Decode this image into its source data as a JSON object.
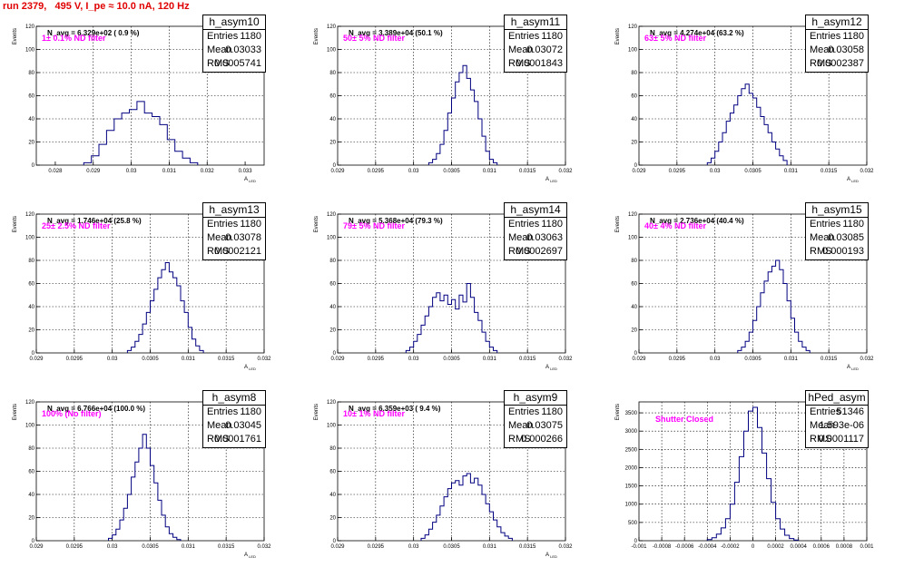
{
  "title": "run 2379,   495 V, I_pe ≈ 10.0 nA, 120 Hz",
  "colors": {
    "title": "#e00000",
    "filter_text": "#ff00ff",
    "hist_line": "#000080",
    "grid": "#000000"
  },
  "chart_data": [
    {
      "type": "histogram",
      "name": "h_asym10",
      "navg": "N_avg = 6.329e+02 ( 0.9 %)",
      "filter": "1± 0.1% ND filter",
      "stats": {
        "entries": "1180",
        "mean": "0.03033",
        "rms": "0.0005741"
      },
      "xlim": [
        0.0275,
        0.0335
      ],
      "ylim": [
        0,
        120
      ],
      "xticks": [
        0.028,
        0.029,
        0.03,
        0.031,
        0.032,
        0.033
      ],
      "xtick_labels": [
        "0.028",
        "0.029",
        "0.03",
        "0.031",
        "0.032",
        "0.033"
      ],
      "yticks": [
        0,
        20,
        40,
        60,
        80,
        100,
        120
      ],
      "ylabel": "Events",
      "xlabel": "A_LED",
      "bin_edges": [
        0.02875,
        0.02895,
        0.02915,
        0.02935,
        0.02955,
        0.02975,
        0.02995,
        0.03015,
        0.03035,
        0.03055,
        0.03075,
        0.03095,
        0.03115,
        0.03135,
        0.03155,
        0.03175
      ],
      "counts": [
        2,
        8,
        18,
        30,
        40,
        45,
        48,
        55,
        45,
        42,
        35,
        22,
        12,
        6,
        2
      ]
    },
    {
      "type": "histogram",
      "name": "h_asym11",
      "navg": "N_avg = 3.389e+04 (50.1 %)",
      "filter": "50± 5% ND filter",
      "stats": {
        "entries": "1180",
        "mean": "0.03072",
        "rms": "0.0001843"
      },
      "xlim": [
        0.029,
        0.032
      ],
      "ylim": [
        0,
        120
      ],
      "xticks": [
        0.029,
        0.0295,
        0.03,
        0.0305,
        0.031,
        0.0315,
        0.032
      ],
      "xtick_labels": [
        "0.029",
        "0.0295",
        "0.03",
        "0.0305",
        "0.031",
        "0.0315",
        "0.032"
      ],
      "yticks": [
        0,
        20,
        40,
        60,
        80,
        100,
        120
      ],
      "ylabel": "Events",
      "xlabel": "A_LED",
      "bin_edges": [
        0.0302,
        0.03025,
        0.0303,
        0.03035,
        0.0304,
        0.03045,
        0.0305,
        0.03055,
        0.0306,
        0.03065,
        0.0307,
        0.03075,
        0.0308,
        0.03085,
        0.0309,
        0.03095,
        0.031,
        0.03105,
        0.0311
      ],
      "counts": [
        2,
        5,
        10,
        18,
        30,
        45,
        58,
        72,
        80,
        86,
        75,
        65,
        55,
        40,
        25,
        12,
        5,
        2
      ]
    },
    {
      "type": "histogram",
      "name": "h_asym12",
      "navg": "N_avg = 4.274e+04 (63.2 %)",
      "filter": "63± 5% ND filter",
      "stats": {
        "entries": "1180",
        "mean": "0.03058",
        "rms": "0.0002387"
      },
      "xlim": [
        0.029,
        0.032
      ],
      "ylim": [
        0,
        120
      ],
      "xticks": [
        0.029,
        0.0295,
        0.03,
        0.0305,
        0.031,
        0.0315,
        0.032
      ],
      "xtick_labels": [
        "0.029",
        "0.0295",
        "0.03",
        "0.0305",
        "0.031",
        "0.0315",
        "0.032"
      ],
      "yticks": [
        0,
        20,
        40,
        60,
        80,
        100,
        120
      ],
      "ylabel": "Events",
      "xlabel": "A_LED",
      "bin_edges": [
        0.0299,
        0.02995,
        0.03,
        0.03005,
        0.0301,
        0.03015,
        0.0302,
        0.03025,
        0.0303,
        0.03035,
        0.0304,
        0.03045,
        0.0305,
        0.03055,
        0.0306,
        0.03065,
        0.0307,
        0.03075,
        0.0308,
        0.03085,
        0.0309,
        0.03095
      ],
      "counts": [
        2,
        6,
        12,
        20,
        28,
        38,
        45,
        52,
        60,
        66,
        70,
        62,
        58,
        50,
        42,
        35,
        28,
        20,
        14,
        8,
        4
      ]
    },
    {
      "type": "histogram",
      "name": "h_asym13",
      "navg": "N_avg = 1.746e+04 (25.8 %)",
      "filter": "25± 2.5% ND filter",
      "stats": {
        "entries": "1180",
        "mean": "0.03078",
        "rms": "0.0002121"
      },
      "xlim": [
        0.029,
        0.032
      ],
      "ylim": [
        0,
        120
      ],
      "xticks": [
        0.029,
        0.0295,
        0.03,
        0.0305,
        0.031,
        0.0315,
        0.032
      ],
      "xtick_labels": [
        "0.029",
        "0.0295",
        "0.03",
        "0.0305",
        "0.031",
        "0.0315",
        "0.032"
      ],
      "yticks": [
        0,
        20,
        40,
        60,
        80,
        100,
        120
      ],
      "ylabel": "Events",
      "xlabel": "A_LED",
      "bin_edges": [
        0.0302,
        0.03025,
        0.0303,
        0.03035,
        0.0304,
        0.03045,
        0.0305,
        0.03055,
        0.0306,
        0.03065,
        0.0307,
        0.03075,
        0.0308,
        0.03085,
        0.0309,
        0.03095,
        0.031,
        0.03105,
        0.0311,
        0.03115,
        0.0312
      ],
      "counts": [
        2,
        5,
        10,
        16,
        25,
        35,
        45,
        55,
        65,
        72,
        78,
        70,
        65,
        58,
        45,
        35,
        22,
        12,
        6,
        2
      ]
    },
    {
      "type": "histogram",
      "name": "h_asym14",
      "navg": "N_avg = 5.368e+04 (79.3 %)",
      "filter": "79± 5% ND filter",
      "stats": {
        "entries": "1180",
        "mean": "0.03063",
        "rms": "0.0002697"
      },
      "xlim": [
        0.029,
        0.032
      ],
      "ylim": [
        0,
        120
      ],
      "xticks": [
        0.029,
        0.0295,
        0.03,
        0.0305,
        0.031,
        0.0315,
        0.032
      ],
      "xtick_labels": [
        "0.029",
        "0.0295",
        "0.03",
        "0.0305",
        "0.031",
        "0.0315",
        "0.032"
      ],
      "yticks": [
        0,
        20,
        40,
        60,
        80,
        100,
        120
      ],
      "ylabel": "Events",
      "xlabel": "A_LED",
      "bin_edges": [
        0.0299,
        0.02995,
        0.03,
        0.03005,
        0.0301,
        0.03015,
        0.0302,
        0.03025,
        0.0303,
        0.03035,
        0.0304,
        0.03045,
        0.0305,
        0.03055,
        0.0306,
        0.03065,
        0.0307,
        0.03075,
        0.0308,
        0.03085,
        0.0309,
        0.03095,
        0.031,
        0.03105,
        0.0311
      ],
      "counts": [
        2,
        5,
        10,
        16,
        24,
        32,
        40,
        48,
        52,
        45,
        50,
        42,
        46,
        38,
        50,
        44,
        60,
        48,
        35,
        28,
        18,
        10,
        5,
        2
      ]
    },
    {
      "type": "histogram",
      "name": "h_asym15",
      "navg": "N_avg = 2.736e+04 (40.4 %)",
      "filter": "40± 4% ND filter",
      "stats": {
        "entries": "1180",
        "mean": "0.03085",
        "rms": "0.000193"
      },
      "xlim": [
        0.029,
        0.032
      ],
      "ylim": [
        0,
        120
      ],
      "xticks": [
        0.029,
        0.0295,
        0.03,
        0.0305,
        0.031,
        0.0315,
        0.032
      ],
      "xtick_labels": [
        "0.029",
        "0.0295",
        "0.03",
        "0.0305",
        "0.031",
        "0.0315",
        "0.032"
      ],
      "yticks": [
        0,
        20,
        40,
        60,
        80,
        100,
        120
      ],
      "ylabel": "Events",
      "xlabel": "A_LED",
      "bin_edges": [
        0.0303,
        0.03035,
        0.0304,
        0.03045,
        0.0305,
        0.03055,
        0.0306,
        0.03065,
        0.0307,
        0.03075,
        0.0308,
        0.03085,
        0.0309,
        0.03095,
        0.031,
        0.03105,
        0.0311,
        0.03115,
        0.0312,
        0.03125
      ],
      "counts": [
        2,
        5,
        10,
        18,
        28,
        40,
        52,
        62,
        70,
        75,
        80,
        72,
        60,
        45,
        30,
        18,
        10,
        5,
        2
      ]
    },
    {
      "type": "histogram",
      "name": "h_asym8",
      "navg": "N_avg = 6.766e+04 (100.0 %)",
      "filter": "100% (No filter)",
      "stats": {
        "entries": "1180",
        "mean": "0.03045",
        "rms": "0.0001761"
      },
      "xlim": [
        0.029,
        0.032
      ],
      "ylim": [
        0,
        120
      ],
      "xticks": [
        0.029,
        0.0295,
        0.03,
        0.0305,
        0.031,
        0.0315,
        0.032
      ],
      "xtick_labels": [
        "0.029",
        "0.0295",
        "0.03",
        "0.0305",
        "0.031",
        "0.0315",
        "0.032"
      ],
      "yticks": [
        0,
        20,
        40,
        60,
        80,
        100,
        120
      ],
      "ylabel": "Events",
      "xlabel": "A_LED",
      "bin_edges": [
        0.02995,
        0.03,
        0.03005,
        0.0301,
        0.03015,
        0.0302,
        0.03025,
        0.0303,
        0.03035,
        0.0304,
        0.03045,
        0.0305,
        0.03055,
        0.0306,
        0.03065,
        0.0307,
        0.03075,
        0.0308,
        0.03085,
        0.0309
      ],
      "counts": [
        2,
        5,
        10,
        18,
        28,
        40,
        55,
        68,
        80,
        92,
        80,
        65,
        50,
        35,
        22,
        12,
        6,
        3,
        1
      ]
    },
    {
      "type": "histogram",
      "name": "h_asym9",
      "navg": "N_avg = 6.359e+03 ( 9.4 %)",
      "filter": "10± 1% ND filter",
      "stats": {
        "entries": "1180",
        "mean": "0.03075",
        "rms": "0.000266"
      },
      "xlim": [
        0.029,
        0.032
      ],
      "ylim": [
        0,
        120
      ],
      "xticks": [
        0.029,
        0.0295,
        0.03,
        0.0305,
        0.031,
        0.0315,
        0.032
      ],
      "xtick_labels": [
        "0.029",
        "0.0295",
        "0.03",
        "0.0305",
        "0.031",
        "0.0315",
        "0.032"
      ],
      "yticks": [
        0,
        20,
        40,
        60,
        80,
        100,
        120
      ],
      "ylabel": "Events",
      "xlabel": "A_LED",
      "bin_edges": [
        0.0301,
        0.03015,
        0.0302,
        0.03025,
        0.0303,
        0.03035,
        0.0304,
        0.03045,
        0.0305,
        0.03055,
        0.0306,
        0.03065,
        0.0307,
        0.03075,
        0.0308,
        0.03085,
        0.0309,
        0.03095,
        0.031,
        0.03105,
        0.0311,
        0.03115,
        0.0312,
        0.03125,
        0.0313
      ],
      "counts": [
        2,
        5,
        10,
        16,
        22,
        30,
        38,
        45,
        50,
        52,
        48,
        56,
        58,
        50,
        54,
        48,
        40,
        32,
        25,
        18,
        12,
        7,
        4,
        2
      ]
    },
    {
      "type": "histogram",
      "name": "hPed_asym",
      "navg": "",
      "filter": "Shutter Closed",
      "stats": {
        "entries": "51346",
        "mean": "1.593e-06",
        "rms": "0.0001117"
      },
      "xlim": [
        -0.001,
        0.001
      ],
      "ylim": [
        0,
        3800
      ],
      "xticks": [
        -0.001,
        -0.0008,
        -0.0006,
        -0.0004,
        -0.0002,
        0,
        0.0002,
        0.0004,
        0.0006,
        0.0008,
        0.001
      ],
      "xtick_labels": [
        "-0.001",
        "-0.0008",
        "-0.0006",
        "-0.0004",
        "-0.0002",
        "0",
        "0.0002",
        "0.0004",
        "0.0006",
        "0.0008",
        "0.001"
      ],
      "yticks": [
        0,
        500,
        1000,
        1500,
        2000,
        2500,
        3000,
        3500
      ],
      "ylabel": "Events",
      "xlabel": "",
      "bin_edges": [
        -0.0004,
        -0.00036,
        -0.00032,
        -0.00028,
        -0.00024,
        -0.0002,
        -0.00016,
        -0.00012,
        -8e-05,
        -4e-05,
        0,
        4e-05,
        8e-05,
        0.00012,
        0.00016,
        0.0002,
        0.00024,
        0.00028,
        0.00032,
        0.00036,
        0.0004
      ],
      "counts": [
        30,
        80,
        180,
        350,
        600,
        1000,
        1600,
        2300,
        3000,
        3550,
        3650,
        3100,
        2400,
        1700,
        1050,
        600,
        320,
        150,
        60,
        20
      ]
    }
  ]
}
